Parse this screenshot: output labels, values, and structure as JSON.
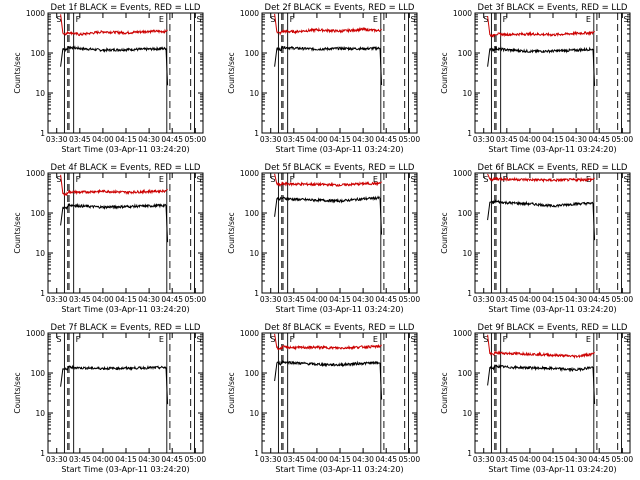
{
  "page": {
    "background": "#ffffff",
    "events_color": "#000000",
    "lld_color": "#cc0000"
  },
  "chart_data": {
    "type": "line",
    "ylabel": "Counts/sec",
    "xlabel": "Start Time (03-Apr-11 03:24:20)",
    "y_scale": "log",
    "ylim": [
      1,
      1000
    ],
    "y_ticks": [
      "1",
      "10",
      "100",
      "1000"
    ],
    "xlim": [
      "03:24:20",
      "05:05:00"
    ],
    "x_ticks": [
      "03:30",
      "03:45",
      "04:00",
      "04:15",
      "04:30",
      "04:45",
      "05:00"
    ],
    "markers": [
      "S",
      "F",
      "E",
      "S"
    ],
    "marker_style": [
      "solid",
      "dashed",
      "dashed",
      "solid",
      "solid",
      "dashed",
      "dashed",
      "solid"
    ],
    "panels": [
      {
        "title": "Det 1f BLACK = Events, RED = LLD",
        "series": [
          {
            "name": "Events",
            "points": [
              [
                "03:34:00",
                130
              ],
              [
                "03:36:30",
                120
              ],
              [
                "03:37:20",
                140
              ],
              [
                "03:45",
                130
              ],
              [
                "04:00",
                118
              ],
              [
                "04:15",
                122
              ],
              [
                "04:30",
                125
              ],
              [
                "04:41",
                130
              ]
            ]
          },
          {
            "name": "LLD",
            "points": [
              [
                "03:34:00",
                310
              ],
              [
                "03:36:30",
                300
              ],
              [
                "03:37:20",
                330
              ],
              [
                "03:45",
                290
              ],
              [
                "04:00",
                340
              ],
              [
                "04:15",
                320
              ],
              [
                "04:30",
                350
              ],
              [
                "04:41",
                345
              ]
            ]
          }
        ]
      },
      {
        "title": "Det 2f BLACK = Events, RED = LLD",
        "series": [
          {
            "name": "Events",
            "points": [
              [
                "03:34:00",
                130
              ],
              [
                "03:36:30",
                120
              ],
              [
                "03:37:20",
                140
              ],
              [
                "03:45",
                132
              ],
              [
                "04:00",
                125
              ],
              [
                "04:15",
                130
              ],
              [
                "04:30",
                128
              ],
              [
                "04:41",
                132
              ]
            ]
          },
          {
            "name": "LLD",
            "points": [
              [
                "03:34:00",
                330
              ],
              [
                "03:36:30",
                310
              ],
              [
                "03:37:20",
                350
              ],
              [
                "03:45",
                340
              ],
              [
                "04:00",
                380
              ],
              [
                "04:15",
                350
              ],
              [
                "04:30",
                390
              ],
              [
                "04:41",
                360
              ]
            ]
          }
        ]
      },
      {
        "title": "Det 3f BLACK = Events, RED = LLD",
        "series": [
          {
            "name": "Events",
            "points": [
              [
                "03:34:00",
                130
              ],
              [
                "03:36:30",
                120
              ],
              [
                "03:37:20",
                130
              ],
              [
                "03:45",
                120
              ],
              [
                "04:00",
                110
              ],
              [
                "04:15",
                112
              ],
              [
                "04:30",
                118
              ],
              [
                "04:41",
                125
              ]
            ]
          },
          {
            "name": "LLD",
            "points": [
              [
                "03:34:00",
                280
              ],
              [
                "03:36:30",
                270
              ],
              [
                "03:37:20",
                300
              ],
              [
                "03:45",
                290
              ],
              [
                "04:00",
                300
              ],
              [
                "04:15",
                285
              ],
              [
                "04:30",
                310
              ],
              [
                "04:41",
                320
              ]
            ]
          }
        ]
      },
      {
        "title": "Det 4f BLACK = Events, RED = LLD",
        "series": [
          {
            "name": "Events",
            "points": [
              [
                "03:34:00",
                140
              ],
              [
                "03:36:30",
                130
              ],
              [
                "03:37:20",
                160
              ],
              [
                "03:45",
                150
              ],
              [
                "04:00",
                140
              ],
              [
                "04:15",
                145
              ],
              [
                "04:30",
                150
              ],
              [
                "04:41",
                155
              ]
            ]
          },
          {
            "name": "LLD",
            "points": [
              [
                "03:34:00",
                300
              ],
              [
                "03:36:30",
                290
              ],
              [
                "03:37:20",
                340
              ],
              [
                "03:45",
                330
              ],
              [
                "04:00",
                350
              ],
              [
                "04:15",
                330
              ],
              [
                "04:30",
                345
              ],
              [
                "04:41",
                360
              ]
            ]
          }
        ]
      },
      {
        "title": "Det 5f BLACK = Events, RED = LLD",
        "series": [
          {
            "name": "Events",
            "points": [
              [
                "03:34:00",
                230
              ],
              [
                "03:36:30",
                225
              ],
              [
                "03:37:20",
                235
              ],
              [
                "03:45",
                220
              ],
              [
                "04:00",
                210
              ],
              [
                "04:15",
                200
              ],
              [
                "04:30",
                225
              ],
              [
                "04:41",
                240
              ]
            ]
          },
          {
            "name": "LLD",
            "points": [
              [
                "03:34:00",
                520
              ],
              [
                "03:36:30",
                500
              ],
              [
                "03:37:20",
                540
              ],
              [
                "03:45",
                530
              ],
              [
                "04:00",
                520
              ],
              [
                "04:15",
                500
              ],
              [
                "04:30",
                540
              ],
              [
                "04:41",
                550
              ]
            ]
          }
        ]
      },
      {
        "title": "Det 6f BLACK = Events, RED = LLD",
        "series": [
          {
            "name": "Events",
            "points": [
              [
                "03:34:00",
                190
              ],
              [
                "03:36:30",
                180
              ],
              [
                "03:37:20",
                195
              ],
              [
                "03:45",
                180
              ],
              [
                "04:00",
                170
              ],
              [
                "04:15",
                150
              ],
              [
                "04:30",
                170
              ],
              [
                "04:41",
                175
              ]
            ]
          },
          {
            "name": "LLD",
            "points": [
              [
                "03:34:00",
                700
              ],
              [
                "03:36:30",
                690
              ],
              [
                "03:37:20",
                720
              ],
              [
                "03:45",
                700
              ],
              [
                "04:00",
                680
              ],
              [
                "04:15",
                660
              ],
              [
                "04:30",
                680
              ],
              [
                "04:41",
                690
              ]
            ]
          }
        ]
      },
      {
        "title": "Det 7f BLACK = Events, RED = LLD",
        "series": [
          {
            "name": "Events",
            "points": [
              [
                "03:34:00",
                130
              ],
              [
                "03:36:30",
                120
              ],
              [
                "03:37:20",
                140
              ],
              [
                "03:45",
                135
              ],
              [
                "04:00",
                130
              ],
              [
                "04:15",
                132
              ],
              [
                "04:30",
                135
              ],
              [
                "04:41",
                138
              ]
            ]
          }
        ]
      },
      {
        "title": "Det 8f BLACK = Events, RED = LLD",
        "series": [
          {
            "name": "Events",
            "points": [
              [
                "03:34:00",
                180
              ],
              [
                "03:36:30",
                170
              ],
              [
                "03:37:20",
                190
              ],
              [
                "03:45",
                180
              ],
              [
                "04:00",
                165
              ],
              [
                "04:15",
                160
              ],
              [
                "04:30",
                175
              ],
              [
                "04:41",
                180
              ]
            ]
          },
          {
            "name": "LLD",
            "points": [
              [
                "03:34:00",
                420
              ],
              [
                "03:36:30",
                400
              ],
              [
                "03:37:20",
                450
              ],
              [
                "03:45",
                430
              ],
              [
                "04:00",
                440
              ],
              [
                "04:15",
                420
              ],
              [
                "04:30",
                450
              ],
              [
                "04:41",
                460
              ]
            ]
          }
        ]
      },
      {
        "title": "Det 9f BLACK = Events, RED = LLD",
        "series": [
          {
            "name": "Events",
            "points": [
              [
                "03:34:00",
                140
              ],
              [
                "03:36:30",
                130
              ],
              [
                "03:37:20",
                150
              ],
              [
                "03:45",
                140
              ],
              [
                "04:00",
                135
              ],
              [
                "04:15",
                130
              ],
              [
                "04:30",
                120
              ],
              [
                "04:41",
                140
              ]
            ]
          },
          {
            "name": "LLD",
            "points": [
              [
                "03:34:00",
                300
              ],
              [
                "03:36:30",
                290
              ],
              [
                "03:37:20",
                320
              ],
              [
                "03:45",
                310
              ],
              [
                "04:00",
                300
              ],
              [
                "04:15",
                280
              ],
              [
                "04:30",
                260
              ],
              [
                "04:41",
                300
              ]
            ]
          }
        ]
      }
    ]
  }
}
